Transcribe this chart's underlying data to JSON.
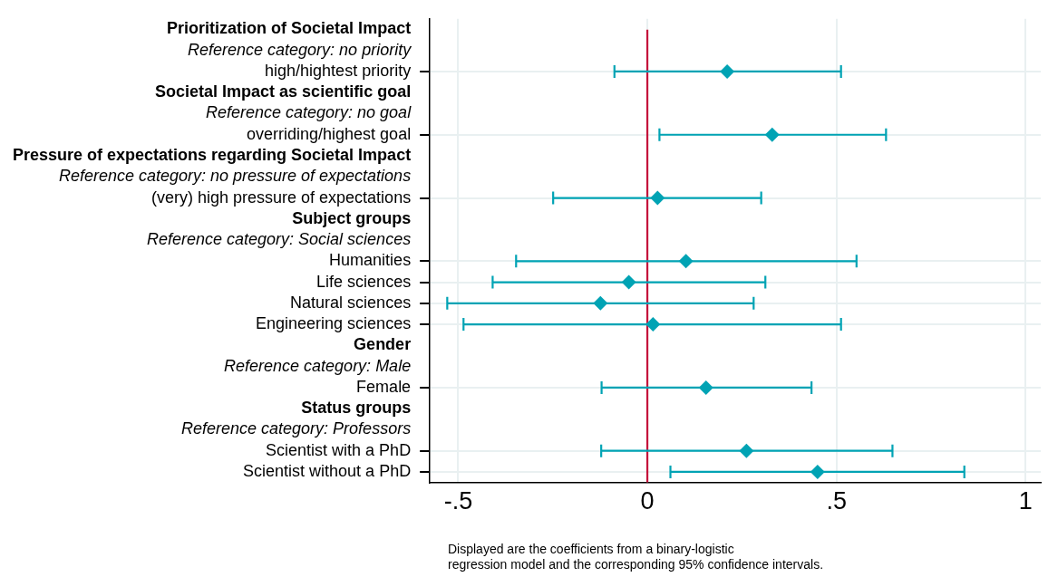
{
  "chart_data": {
    "type": "scatter",
    "orientation": "horizontal",
    "categories": [
      "Prioritization of Societal Impact",
      "Reference category: no priority",
      "high/hightest priority",
      "Societal Impact as scientific goal",
      "Reference category: no goal",
      "overriding/highest goal",
      "Pressure of expectations regarding Societal Impact",
      "Reference category: no pressure of expectations",
      "(very) high pressure of expectations",
      "Subject groups",
      "Reference category: Social sciences",
      "Humanities",
      "Life sciences",
      "Natural sciences",
      "Engineering sciences",
      "Gender",
      "Reference category: Male",
      "Female",
      "Status groups",
      "Reference category: Professors",
      "Scientist with a PhD",
      "Scientist without a PhD"
    ],
    "values": [
      null,
      null,
      0.211,
      null,
      null,
      0.33,
      null,
      null,
      0.027,
      null,
      null,
      0.102,
      -0.049,
      -0.124,
      0.015,
      null,
      null,
      0.155,
      null,
      null,
      0.262,
      0.45
    ],
    "errors": [
      null,
      null,
      [
        -0.087,
        0.512
      ],
      null,
      null,
      [
        0.032,
        0.631
      ],
      null,
      null,
      [
        -0.249,
        0.301
      ],
      null,
      null,
      [
        -0.347,
        0.553
      ],
      [
        -0.409,
        0.312
      ],
      [
        -0.529,
        0.281
      ],
      [
        -0.486,
        0.512
      ],
      null,
      null,
      [
        -0.121,
        0.434
      ],
      null,
      null,
      [
        -0.122,
        0.648
      ],
      [
        0.061,
        0.838
      ]
    ],
    "color": "#00a3b4",
    "marker": "diamond",
    "xlim": [
      -0.575,
      1.04
    ],
    "xticks": [
      {
        "value": -0.5,
        "label": "-.5"
      },
      0,
      {
        "value": 0.5,
        "label": ".5"
      },
      1
    ],
    "grid": true,
    "ref_lines": [
      {
        "axis": "x",
        "value": 0,
        "color": "#c4123b"
      }
    ],
    "annotations": [
      "Displayed are the coefficients from a binary-logistic\nregression model and the corresponding 95% confidence intervals."
    ]
  }
}
